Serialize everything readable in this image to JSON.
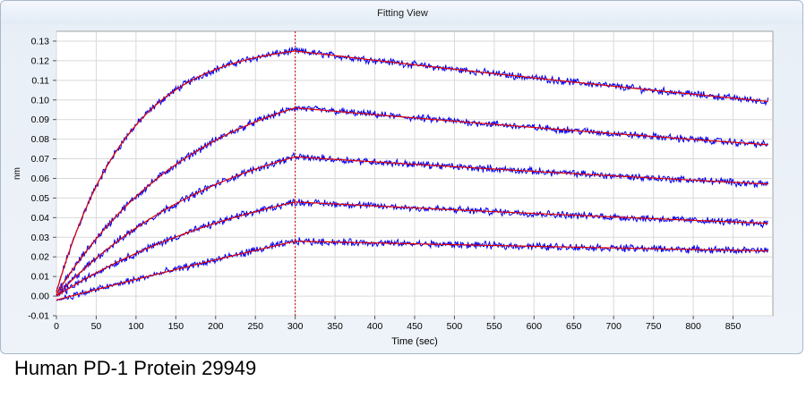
{
  "window": {
    "title": "Fitting View"
  },
  "caption": "Human PD-1 Protein 29949",
  "colors": {
    "data": "#0000ee",
    "fit": "#e00000",
    "marker": "#cc0000",
    "grid": "#d9d9d9",
    "plot_bg": "#ffffff"
  },
  "chart_data": {
    "type": "line",
    "title": "Fitting View",
    "xlabel": "Time (sec)",
    "ylabel": "nm",
    "xlim": [
      0,
      900
    ],
    "ylim": [
      -0.01,
      0.135
    ],
    "xticks": [
      0,
      50,
      100,
      150,
      200,
      250,
      300,
      350,
      400,
      450,
      500,
      550,
      600,
      650,
      700,
      750,
      800,
      850
    ],
    "yticks": [
      -0.01,
      0.0,
      0.01,
      0.02,
      0.03,
      0.04,
      0.05,
      0.06,
      0.07,
      0.08,
      0.09,
      0.1,
      0.11,
      0.12,
      0.13
    ],
    "ytick_labels": [
      "-0.01",
      "0.00",
      "0.01",
      "0.02",
      "0.03",
      "0.04",
      "0.05",
      "0.06",
      "0.07",
      "0.08",
      "0.09",
      "0.10",
      "0.11",
      "0.12",
      "0.13"
    ],
    "grid": true,
    "dissociation_start": 300,
    "x_end": 900,
    "series": [
      {
        "values": {
          "start": 0.002,
          "assoc_end": 0.125,
          "assoc_rate": 0.011,
          "diss_end": 0.099
        }
      },
      {
        "values": {
          "start": 0.001,
          "assoc_end": 0.096,
          "assoc_rate": 0.0055,
          "diss_end": 0.077
        }
      },
      {
        "values": {
          "start": 0.0,
          "assoc_end": 0.071,
          "assoc_rate": 0.0045,
          "diss_end": 0.057
        }
      },
      {
        "values": {
          "start": 0.0,
          "assoc_end": 0.048,
          "assoc_rate": 0.0035,
          "diss_end": 0.037
        }
      },
      {
        "values": {
          "start": -0.002,
          "assoc_end": 0.028,
          "assoc_rate": 0.0005,
          "diss_end": 0.023
        }
      }
    ]
  }
}
